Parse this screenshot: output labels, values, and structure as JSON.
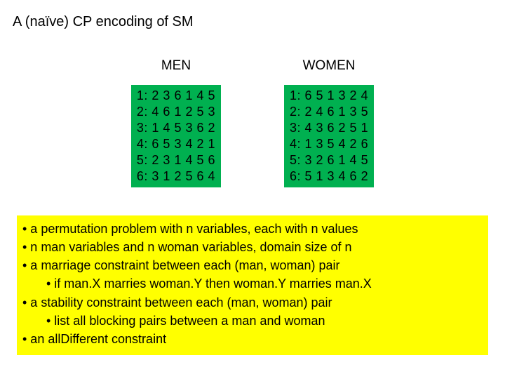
{
  "title": "A (naïve) CP encoding of SM",
  "men": {
    "header": "MEN",
    "rows": [
      "1: 2 3 6 1 4 5",
      "2: 4 6 1 2 5 3",
      "3: 1 4 5 3 6 2",
      "4: 6 5 3 4 2 1",
      "5: 2 3 1 4 5 6",
      "6: 3 1 2 5 6 4"
    ]
  },
  "women": {
    "header": "WOMEN",
    "rows": [
      "1: 6 5 1 3 2 4",
      "2: 2 4 6 1 3 5",
      "3: 4 3 6 2 5 1",
      "4: 1 3 5 4 2 6",
      "5: 3 2 6 1 4 5",
      "6: 5 1 3 4 6 2"
    ]
  },
  "notes": {
    "l1": "• a permutation problem with n variables, each with n values",
    "l2": "• n man variables and n woman variables, domain size of n",
    "l3": "• a marriage constraint between each (man, woman) pair",
    "l4": "• if man.X marries woman.Y then woman.Y marries man.X",
    "l5": "• a stability constraint between each (man, woman) pair",
    "l6": "• list all blocking pairs between a man and woman",
    "l7": "• an allDifferent constraint"
  },
  "colors": {
    "pref_bg": "#00b050",
    "notes_bg": "#ffff00",
    "page_bg": "#ffffff",
    "text": "#000000"
  }
}
